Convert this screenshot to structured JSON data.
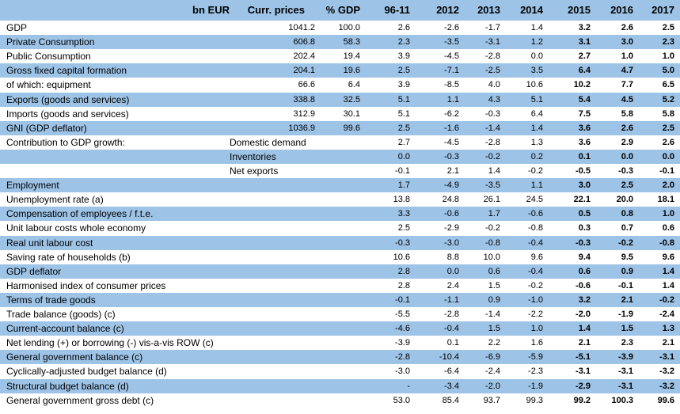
{
  "header": {
    "cells": [
      "bn EUR",
      "Curr. prices",
      "% GDP",
      "96-11",
      "2012",
      "2013",
      "2014",
      "2015",
      "2016",
      "2017"
    ]
  },
  "table": {
    "rows": [
      {
        "label": "GDP",
        "curr": "1041.2",
        "pct": "100.0",
        "values": [
          "2.6",
          "-2.6",
          "-1.7",
          "1.4",
          "3.2",
          "2.6",
          "2.5"
        ]
      },
      {
        "label": "Private Consumption",
        "curr": "606.8",
        "pct": "58.3",
        "values": [
          "2.3",
          "-3.5",
          "-3.1",
          "1.2",
          "3.1",
          "3.0",
          "2.3"
        ]
      },
      {
        "label": "Public Consumption",
        "curr": "202.4",
        "pct": "19.4",
        "values": [
          "3.9",
          "-4.5",
          "-2.8",
          "0.0",
          "2.7",
          "1.0",
          "1.0"
        ]
      },
      {
        "label": "Gross fixed capital formation",
        "curr": "204.1",
        "pct": "19.6",
        "values": [
          "2.5",
          "-7.1",
          "-2.5",
          "3.5",
          "6.4",
          "4.7",
          "5.0"
        ]
      },
      {
        "label": "of which: equipment",
        "curr": "66.6",
        "pct": "6.4",
        "values": [
          "3.9",
          "-8.5",
          "4.0",
          "10.6",
          "10.2",
          "7.7",
          "6.5"
        ]
      },
      {
        "label": "Exports (goods and services)",
        "curr": "338.8",
        "pct": "32.5",
        "values": [
          "5.1",
          "1.1",
          "4.3",
          "5.1",
          "5.4",
          "4.5",
          "5.2"
        ]
      },
      {
        "label": "Imports (goods and services)",
        "curr": "312.9",
        "pct": "30.1",
        "values": [
          "5.1",
          "-6.2",
          "-0.3",
          "6.4",
          "7.5",
          "5.8",
          "5.8"
        ]
      },
      {
        "label": "GNI (GDP deflator)",
        "curr": "1036.9",
        "pct": "99.6",
        "values": [
          "2.5",
          "-1.6",
          "-1.4",
          "1.4",
          "3.6",
          "2.6",
          "2.5"
        ]
      },
      {
        "label": "Contribution to GDP growth:",
        "sub": "Domestic demand",
        "values": [
          "2.7",
          "-4.5",
          "-2.8",
          "1.3",
          "3.6",
          "2.9",
          "2.6"
        ]
      },
      {
        "sub": "Inventories",
        "values": [
          "0.0",
          "-0.3",
          "-0.2",
          "0.2",
          "0.1",
          "0.0",
          "0.0"
        ]
      },
      {
        "sub": "Net exports",
        "values": [
          "-0.1",
          "2.1",
          "1.4",
          "-0.2",
          "-0.5",
          "-0.3",
          "-0.1"
        ]
      },
      {
        "label": "Employment",
        "values": [
          "1.7",
          "-4.9",
          "-3.5",
          "1.1",
          "3.0",
          "2.5",
          "2.0"
        ]
      },
      {
        "label": "Unemployment rate (a)",
        "values": [
          "13.8",
          "24.8",
          "26.1",
          "24.5",
          "22.1",
          "20.0",
          "18.1"
        ]
      },
      {
        "label": "Compensation of employees / f.t.e.",
        "values": [
          "3.3",
          "-0.6",
          "1.7",
          "-0.6",
          "0.5",
          "0.8",
          "1.0"
        ]
      },
      {
        "label": "Unit labour costs whole economy",
        "values": [
          "2.5",
          "-2.9",
          "-0.2",
          "-0.8",
          "0.3",
          "0.7",
          "0.6"
        ]
      },
      {
        "label": "Real unit labour cost",
        "values": [
          "-0.3",
          "-3.0",
          "-0.8",
          "-0.4",
          "-0.3",
          "-0.2",
          "-0.8"
        ]
      },
      {
        "label": "Saving rate of households (b)",
        "values": [
          "10.6",
          "8.8",
          "10.0",
          "9.6",
          "9.4",
          "9.5",
          "9.6"
        ]
      },
      {
        "label": "GDP deflator",
        "values": [
          "2.8",
          "0.0",
          "0.6",
          "-0.4",
          "0.6",
          "0.9",
          "1.4"
        ]
      },
      {
        "label": "Harmonised index of consumer prices",
        "values": [
          "2.8",
          "2.4",
          "1.5",
          "-0.2",
          "-0.6",
          "-0.1",
          "1.4"
        ]
      },
      {
        "label": "Terms of trade goods",
        "values": [
          "-0.1",
          "-1.1",
          "0.9",
          "-1.0",
          "3.2",
          "2.1",
          "-0.2"
        ]
      },
      {
        "label": "Trade balance (goods) (c)",
        "values": [
          "-5.5",
          "-2.8",
          "-1.4",
          "-2.2",
          "-2.0",
          "-1.9",
          "-2.4"
        ]
      },
      {
        "label": "Current-account balance (c)",
        "values": [
          "-4.6",
          "-0.4",
          "1.5",
          "1.0",
          "1.4",
          "1.5",
          "1.3"
        ]
      },
      {
        "label": "Net lending (+) or borrowing (-) vis-a-vis ROW (c)",
        "values": [
          "-3.9",
          "0.1",
          "2.2",
          "1.6",
          "2.1",
          "2.3",
          "2.1"
        ]
      },
      {
        "label": "General government balance (c)",
        "values": [
          "-2.8",
          "-10.4",
          "-6.9",
          "-5.9",
          "-5.1",
          "-3.9",
          "-3.1"
        ]
      },
      {
        "label": "Cyclically-adjusted budget balance (d)",
        "values": [
          "-3.0",
          "-6.4",
          "-2.4",
          "-2.3",
          "-3.1",
          "-3.1",
          "-3.2"
        ]
      },
      {
        "label": "Structural budget balance (d)",
        "values": [
          "-",
          "-3.4",
          "-2.0",
          "-1.9",
          "-2.9",
          "-3.1",
          "-3.2"
        ]
      },
      {
        "label": "General government gross debt (c)",
        "values": [
          "53.0",
          "85.4",
          "93.7",
          "99.3",
          "99.2",
          "100.3",
          "99.6"
        ]
      }
    ]
  }
}
